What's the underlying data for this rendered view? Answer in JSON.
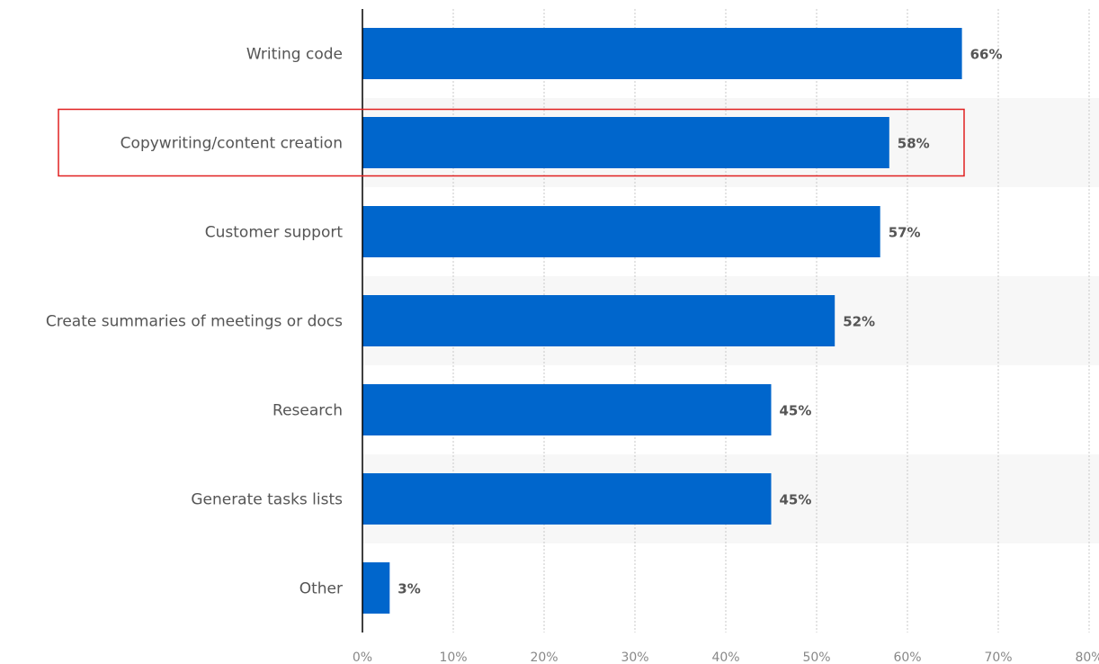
{
  "chart_data": {
    "type": "bar",
    "orientation": "horizontal",
    "categories": [
      "Writing code",
      "Copywriting/content creation",
      "Customer support",
      "Create summaries of meetings or docs",
      "Research",
      "Generate tasks lists",
      "Other"
    ],
    "values": [
      66,
      58,
      57,
      52,
      45,
      45,
      3
    ],
    "value_labels": [
      "66%",
      "58%",
      "57%",
      "52%",
      "45%",
      "45%",
      "3%"
    ],
    "xlim": [
      0,
      80
    ],
    "x_ticks": [
      0,
      10,
      20,
      30,
      40,
      50,
      60,
      70,
      80
    ],
    "x_tick_labels": [
      "0%",
      "10%",
      "20%",
      "30%",
      "40%",
      "50%",
      "60%",
      "70%",
      "80%"
    ],
    "grid": true,
    "highlighted_category": "Copywriting/content creation",
    "title": "",
    "xlabel": "",
    "ylabel": ""
  },
  "colors": {
    "bar": "#0066cc",
    "highlight_box": "#e02020",
    "alt_band": "#f7f7f7",
    "axis": "#000000"
  }
}
